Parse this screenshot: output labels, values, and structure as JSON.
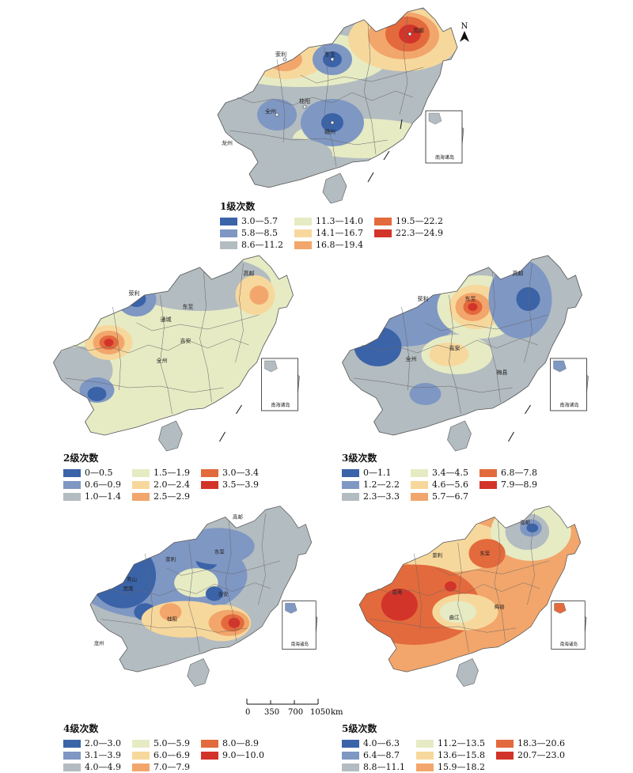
{
  "north_label": "N",
  "scale": {
    "ticks": [
      "0",
      "350",
      "700",
      "1050"
    ],
    "unit": "km"
  },
  "inset_label": "南海诸岛",
  "cities": [
    "高邮",
    "宜兴",
    "湖州",
    "南京",
    "荥利",
    "通城",
    "修水",
    "东至",
    "徽州",
    "秀山",
    "思南",
    "吉安",
    "全州",
    "桂阳",
    "曲江",
    "梅县",
    "赣州",
    "龙州",
    "肇庆",
    "徐闻"
  ],
  "colors": {
    "blue": "#3b63a8",
    "blue2": "#7f97c3",
    "grey": "#b3bcc0",
    "paleyellow": "#e6ebc4",
    "lightorange": "#f7d89c",
    "orange": "#f2a66b",
    "darkorange": "#e36a3c",
    "red": "#d3342a"
  },
  "maps": [
    {
      "title": "1级次数",
      "legend": [
        "3.0—5.7",
        "5.8—8.5",
        "8.6—11.2",
        "11.3—14.0",
        "14.1—16.7",
        "16.8—19.4",
        "19.5—22.2",
        "22.3—24.9"
      ],
      "legend_colors": [
        "#3b63a8",
        "#7f97c3",
        "#b3bcc0",
        "#e6ebc4",
        "#f7d89c",
        "#f2a66b",
        "#e36a3c",
        "#d3342a"
      ]
    },
    {
      "title": "2级次数",
      "legend": [
        "0—0.5",
        "0.6—0.9",
        "1.0—1.4",
        "1.5—1.9",
        "2.0—2.4",
        "2.5—2.9",
        "3.0—3.4",
        "3.5—3.9"
      ],
      "legend_colors": [
        "#3b63a8",
        "#7f97c3",
        "#b3bcc0",
        "#e6ebc4",
        "#f7d89c",
        "#f2a66b",
        "#e36a3c",
        "#d3342a"
      ]
    },
    {
      "title": "3级次数",
      "legend": [
        "0—1.1",
        "1.2—2.2",
        "2.3—3.3",
        "3.4—4.5",
        "4.6—5.6",
        "5.7—6.7",
        "6.8—7.8",
        "7.9—8.9"
      ],
      "legend_colors": [
        "#3b63a8",
        "#7f97c3",
        "#b3bcc0",
        "#e6ebc4",
        "#f7d89c",
        "#f2a66b",
        "#e36a3c",
        "#d3342a"
      ]
    },
    {
      "title": "4级次数",
      "legend": [
        "2.0—3.0",
        "3.1—3.9",
        "4.0—4.9",
        "5.0—5.9",
        "6.0—6.9",
        "7.0—7.9",
        "8.0—8.9",
        "9.0—10.0"
      ],
      "legend_colors": [
        "#3b63a8",
        "#7f97c3",
        "#b3bcc0",
        "#e6ebc4",
        "#f7d89c",
        "#f2a66b",
        "#e36a3c",
        "#d3342a"
      ]
    },
    {
      "title": "5级次数",
      "legend": [
        "4.0—6.3",
        "6.4—8.7",
        "8.8—11.1",
        "11.2—13.5",
        "13.6—15.8",
        "15.9—18.2",
        "18.3—20.6",
        "20.7—23.0"
      ],
      "legend_colors": [
        "#3b63a8",
        "#7f97c3",
        "#b3bcc0",
        "#e6ebc4",
        "#f7d89c",
        "#f2a66b",
        "#e36a3c",
        "#d3342a"
      ]
    }
  ]
}
